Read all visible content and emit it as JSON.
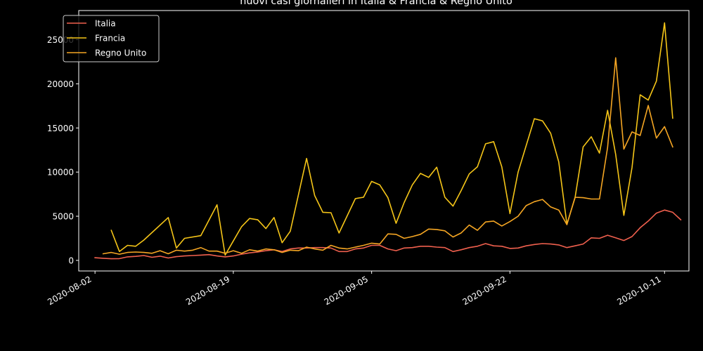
{
  "chart_data": {
    "type": "line",
    "title": "nuovi casi giornalieri in Italia & Francia & Regno Unito",
    "xlabel": "",
    "ylabel": "",
    "x_start": "2020-07-31",
    "x_end": "2020-10-14",
    "ylim": [
      -1200,
      28300
    ],
    "grid": false,
    "legend_position": "top-left",
    "x_ticks": [
      {
        "date": "2020-08-02",
        "label": "2020-08-02"
      },
      {
        "date": "2020-08-19",
        "label": "2020-08-19"
      },
      {
        "date": "2020-09-05",
        "label": "2020-09-05"
      },
      {
        "date": "2020-09-22",
        "label": "2020-09-22"
      },
      {
        "date": "2020-10-11",
        "label": "2020-10-11"
      }
    ],
    "y_ticks": [
      0,
      5000,
      10000,
      15000,
      20000,
      25000
    ],
    "series": [
      {
        "name": "Italia",
        "color": "#f0604e",
        "points": [
          [
            "2020-08-02",
            300
          ],
          [
            "2020-08-03",
            240
          ],
          [
            "2020-08-04",
            180
          ],
          [
            "2020-08-05",
            200
          ],
          [
            "2020-08-06",
            400
          ],
          [
            "2020-08-07",
            450
          ],
          [
            "2020-08-08",
            550
          ],
          [
            "2020-08-09",
            350
          ],
          [
            "2020-08-10",
            480
          ],
          [
            "2020-08-11",
            270
          ],
          [
            "2020-08-12",
            420
          ],
          [
            "2020-08-13",
            500
          ],
          [
            "2020-08-14",
            550
          ],
          [
            "2020-08-15",
            600
          ],
          [
            "2020-08-16",
            650
          ],
          [
            "2020-08-17",
            500
          ],
          [
            "2020-08-18",
            400
          ],
          [
            "2020-08-19",
            500
          ],
          [
            "2020-08-20",
            700
          ],
          [
            "2020-08-21",
            850
          ],
          [
            "2020-08-22",
            950
          ],
          [
            "2020-08-23",
            1100
          ],
          [
            "2020-08-24",
            1200
          ],
          [
            "2020-08-25",
            1000
          ],
          [
            "2020-08-26",
            1300
          ],
          [
            "2020-08-27",
            1400
          ],
          [
            "2020-08-28",
            1400
          ],
          [
            "2020-08-29",
            1450
          ],
          [
            "2020-08-30",
            1450
          ],
          [
            "2020-08-31",
            1400
          ],
          [
            "2020-09-01",
            1000
          ],
          [
            "2020-09-02",
            1000
          ],
          [
            "2020-09-03",
            1300
          ],
          [
            "2020-09-04",
            1400
          ],
          [
            "2020-09-05",
            1700
          ],
          [
            "2020-09-06",
            1700
          ],
          [
            "2020-09-07",
            1300
          ],
          [
            "2020-09-08",
            1100
          ],
          [
            "2020-09-09",
            1400
          ],
          [
            "2020-09-10",
            1450
          ],
          [
            "2020-09-11",
            1600
          ],
          [
            "2020-09-12",
            1600
          ],
          [
            "2020-09-13",
            1500
          ],
          [
            "2020-09-14",
            1450
          ],
          [
            "2020-09-15",
            1000
          ],
          [
            "2020-09-16",
            1200
          ],
          [
            "2020-09-17",
            1450
          ],
          [
            "2020-09-18",
            1600
          ],
          [
            "2020-09-19",
            1900
          ],
          [
            "2020-09-20",
            1650
          ],
          [
            "2020-09-21",
            1600
          ],
          [
            "2020-09-22",
            1350
          ],
          [
            "2020-09-23",
            1400
          ],
          [
            "2020-09-24",
            1650
          ],
          [
            "2020-09-25",
            1800
          ],
          [
            "2020-09-26",
            1900
          ],
          [
            "2020-09-27",
            1850
          ],
          [
            "2020-09-28",
            1750
          ],
          [
            "2020-09-29",
            1450
          ],
          [
            "2020-09-30",
            1650
          ],
          [
            "2020-10-01",
            1850
          ],
          [
            "2020-10-02",
            2550
          ],
          [
            "2020-10-03",
            2500
          ],
          [
            "2020-10-04",
            2850
          ],
          [
            "2020-10-05",
            2550
          ],
          [
            "2020-10-06",
            2250
          ],
          [
            "2020-10-07",
            2700
          ],
          [
            "2020-10-08",
            3700
          ],
          [
            "2020-10-09",
            4450
          ],
          [
            "2020-10-10",
            5350
          ],
          [
            "2020-10-11",
            5700
          ],
          [
            "2020-10-12",
            5450
          ],
          [
            "2020-10-13",
            4600
          ]
        ]
      },
      {
        "name": "Francia",
        "color": "#f5c518",
        "points": [
          [
            "2020-08-04",
            3400
          ],
          [
            "2020-08-05",
            1000
          ],
          [
            "2020-08-06",
            1700
          ],
          [
            "2020-08-07",
            1600
          ],
          [
            "2020-08-08",
            2300
          ],
          [
            "2020-08-11",
            4850
          ],
          [
            "2020-08-12",
            1400
          ],
          [
            "2020-08-13",
            2500
          ],
          [
            "2020-08-15",
            2800
          ],
          [
            "2020-08-17",
            6300
          ],
          [
            "2020-08-18",
            600
          ],
          [
            "2020-08-19",
            2200
          ],
          [
            "2020-08-20",
            3800
          ],
          [
            "2020-08-21",
            4750
          ],
          [
            "2020-08-22",
            4600
          ],
          [
            "2020-08-23",
            3600
          ],
          [
            "2020-08-24",
            4850
          ],
          [
            "2020-08-25",
            2000
          ],
          [
            "2020-08-26",
            3300
          ],
          [
            "2020-08-28",
            11550
          ],
          [
            "2020-08-29",
            7350
          ],
          [
            "2020-08-30",
            5450
          ],
          [
            "2020-08-31",
            5400
          ],
          [
            "2020-09-01",
            3100
          ],
          [
            "2020-09-03",
            7000
          ],
          [
            "2020-09-04",
            7150
          ],
          [
            "2020-09-05",
            8950
          ],
          [
            "2020-09-06",
            8550
          ],
          [
            "2020-09-07",
            7100
          ],
          [
            "2020-09-08",
            4200
          ],
          [
            "2020-09-09",
            6550
          ],
          [
            "2020-09-10",
            8550
          ],
          [
            "2020-09-11",
            9850
          ],
          [
            "2020-09-12",
            9400
          ],
          [
            "2020-09-13",
            10550
          ],
          [
            "2020-09-14",
            7150
          ],
          [
            "2020-09-15",
            6150
          ],
          [
            "2020-09-16",
            7900
          ],
          [
            "2020-09-17",
            9800
          ],
          [
            "2020-09-18",
            10600
          ],
          [
            "2020-09-19",
            13200
          ],
          [
            "2020-09-20",
            13450
          ],
          [
            "2020-09-21",
            10600
          ],
          [
            "2020-09-22",
            5300
          ],
          [
            "2020-09-23",
            10000
          ],
          [
            "2020-09-25",
            16050
          ],
          [
            "2020-09-26",
            15800
          ],
          [
            "2020-09-27",
            14400
          ],
          [
            "2020-09-28",
            11150
          ],
          [
            "2020-09-29",
            4100
          ],
          [
            "2020-09-30",
            7100
          ],
          [
            "2020-10-01",
            12850
          ],
          [
            "2020-10-02",
            14000
          ],
          [
            "2020-10-03",
            12150
          ],
          [
            "2020-10-04",
            17000
          ],
          [
            "2020-10-05",
            12000
          ],
          [
            "2020-10-06",
            5100
          ],
          [
            "2020-10-07",
            10500
          ],
          [
            "2020-10-08",
            18750
          ],
          [
            "2020-10-09",
            18150
          ],
          [
            "2020-10-10",
            20300
          ],
          [
            "2020-10-11",
            26900
          ],
          [
            "2020-10-12",
            16100
          ]
        ]
      },
      {
        "name": "Regno Unito",
        "color": "#f5a623",
        "points": [
          [
            "2020-08-03",
            750
          ],
          [
            "2020-08-04",
            900
          ],
          [
            "2020-08-05",
            700
          ],
          [
            "2020-08-06",
            900
          ],
          [
            "2020-08-07",
            950
          ],
          [
            "2020-08-08",
            900
          ],
          [
            "2020-08-09",
            800
          ],
          [
            "2020-08-10",
            1100
          ],
          [
            "2020-08-11",
            750
          ],
          [
            "2020-08-12",
            1150
          ],
          [
            "2020-08-13",
            1050
          ],
          [
            "2020-08-14",
            1150
          ],
          [
            "2020-08-15",
            1450
          ],
          [
            "2020-08-16",
            1050
          ],
          [
            "2020-08-17",
            1050
          ],
          [
            "2020-08-18",
            800
          ],
          [
            "2020-08-19",
            1100
          ],
          [
            "2020-08-20",
            800
          ],
          [
            "2020-08-21",
            1200
          ],
          [
            "2020-08-22",
            1050
          ],
          [
            "2020-08-23",
            1300
          ],
          [
            "2020-08-24",
            1200
          ],
          [
            "2020-08-25",
            900
          ],
          [
            "2020-08-26",
            1150
          ],
          [
            "2020-08-27",
            1100
          ],
          [
            "2020-08-28",
            1500
          ],
          [
            "2020-08-29",
            1300
          ],
          [
            "2020-08-30",
            1150
          ],
          [
            "2020-08-31",
            1700
          ],
          [
            "2020-09-01",
            1400
          ],
          [
            "2020-09-02",
            1300
          ],
          [
            "2020-09-03",
            1500
          ],
          [
            "2020-09-04",
            1700
          ],
          [
            "2020-09-05",
            1950
          ],
          [
            "2020-09-06",
            1850
          ],
          [
            "2020-09-07",
            3000
          ],
          [
            "2020-09-08",
            2950
          ],
          [
            "2020-09-09",
            2500
          ],
          [
            "2020-09-10",
            2700
          ],
          [
            "2020-09-11",
            2950
          ],
          [
            "2020-09-12",
            3550
          ],
          [
            "2020-09-13",
            3500
          ],
          [
            "2020-09-14",
            3350
          ],
          [
            "2020-09-15",
            2650
          ],
          [
            "2020-09-16",
            3100
          ],
          [
            "2020-09-17",
            4000
          ],
          [
            "2020-09-18",
            3400
          ],
          [
            "2020-09-19",
            4350
          ],
          [
            "2020-09-20",
            4450
          ],
          [
            "2020-09-21",
            3900
          ],
          [
            "2020-09-22",
            4400
          ],
          [
            "2020-09-23",
            5000
          ],
          [
            "2020-09-24",
            6200
          ],
          [
            "2020-09-25",
            6650
          ],
          [
            "2020-09-26",
            6900
          ],
          [
            "2020-09-27",
            6050
          ],
          [
            "2020-09-28",
            5700
          ],
          [
            "2020-09-29",
            4050
          ],
          [
            "2020-09-30",
            7150
          ],
          [
            "2020-10-01",
            7100
          ],
          [
            "2020-10-02",
            6950
          ],
          [
            "2020-10-03",
            6950
          ],
          [
            "2020-10-04",
            12800
          ],
          [
            "2020-10-05",
            22950
          ],
          [
            "2020-10-06",
            12600
          ],
          [
            "2020-10-07",
            14550
          ],
          [
            "2020-10-08",
            14150
          ],
          [
            "2020-10-09",
            17550
          ],
          [
            "2020-10-10",
            13850
          ],
          [
            "2020-10-11",
            15150
          ],
          [
            "2020-10-12",
            12850
          ]
        ]
      }
    ]
  }
}
